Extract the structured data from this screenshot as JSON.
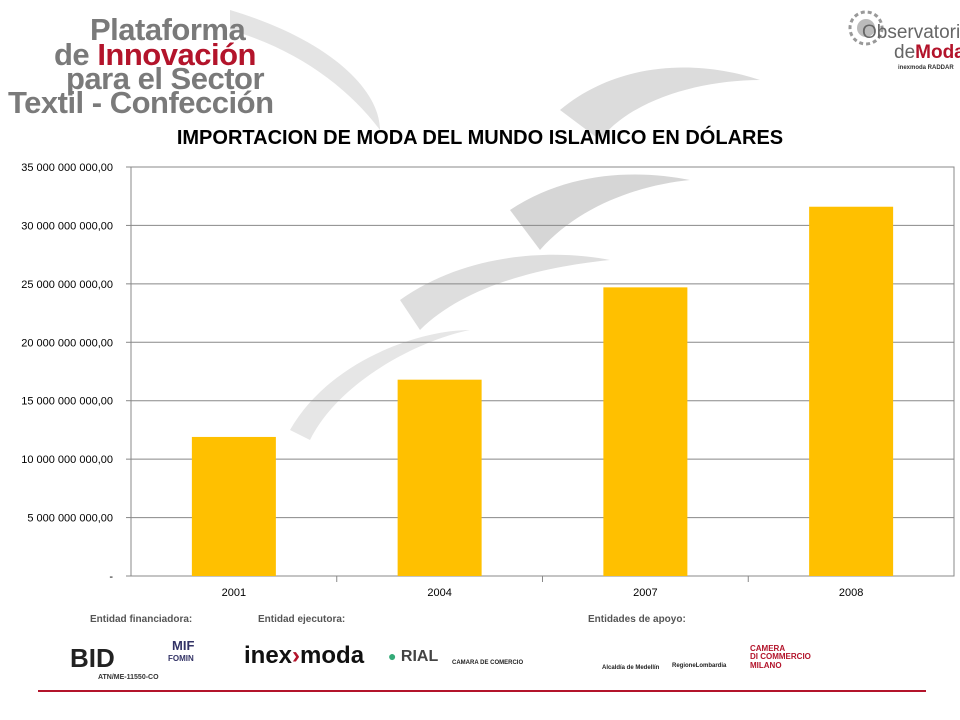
{
  "header": {
    "brand_left": {
      "line1": "Plataforma",
      "line2a": "de",
      "line2b": "Innovación",
      "line3": "para el Sector",
      "line4": "Textil - Confección"
    },
    "brand_right": {
      "line1": "Observatorio",
      "line2a": "de",
      "line2b": "Moda",
      "sub": "inexmoda  RADDAR"
    }
  },
  "chart_data": {
    "type": "bar",
    "title": "IMPORTACION DE MODA DEL MUNDO ISLAMICO EN DÓLARES",
    "categories": [
      "2001",
      "2004",
      "2007",
      "2008"
    ],
    "values": [
      11900000000,
      16800000000,
      24700000000,
      31600000000
    ],
    "ylim": [
      0,
      35000000000
    ],
    "yticks": [
      {
        "value": 0,
        "label": "-"
      },
      {
        "value": 5000000000,
        "label": "5 000 000 000,00"
      },
      {
        "value": 10000000000,
        "label": "10 000 000 000,00"
      },
      {
        "value": 15000000000,
        "label": "15 000 000 000,00"
      },
      {
        "value": 20000000000,
        "label": "20 000 000 000,00"
      },
      {
        "value": 25000000000,
        "label": "25 000 000 000,00"
      },
      {
        "value": 30000000000,
        "label": "30 000 000 000,00"
      },
      {
        "value": 35000000000,
        "label": "35 000 000 000,00"
      }
    ],
    "xlabel": "",
    "ylabel": "",
    "grid": true,
    "bar_color": "#ffc000"
  },
  "footer": {
    "financiadora_label": "Entidad financiadora:",
    "ejecutora_label": "Entidad ejecutora:",
    "apoyo_label": "Entidades de apoyo:",
    "logos": {
      "bid": "BID",
      "bid_code": "ATN/ME-11550-CO",
      "mif": "MIF",
      "fomin": "FOMIN",
      "inexmoda_a": "inex",
      "inexmoda_b": "moda",
      "rial": "RIAL",
      "camara": "CAMARA DE COMERCIO",
      "alcaldia": "Alcaldía de Medellín",
      "lombardia": "RegioneLombardia",
      "camera_a": "CAMERA",
      "camera_b": "DI COMMERCIO",
      "camera_c": "MILANO"
    }
  }
}
